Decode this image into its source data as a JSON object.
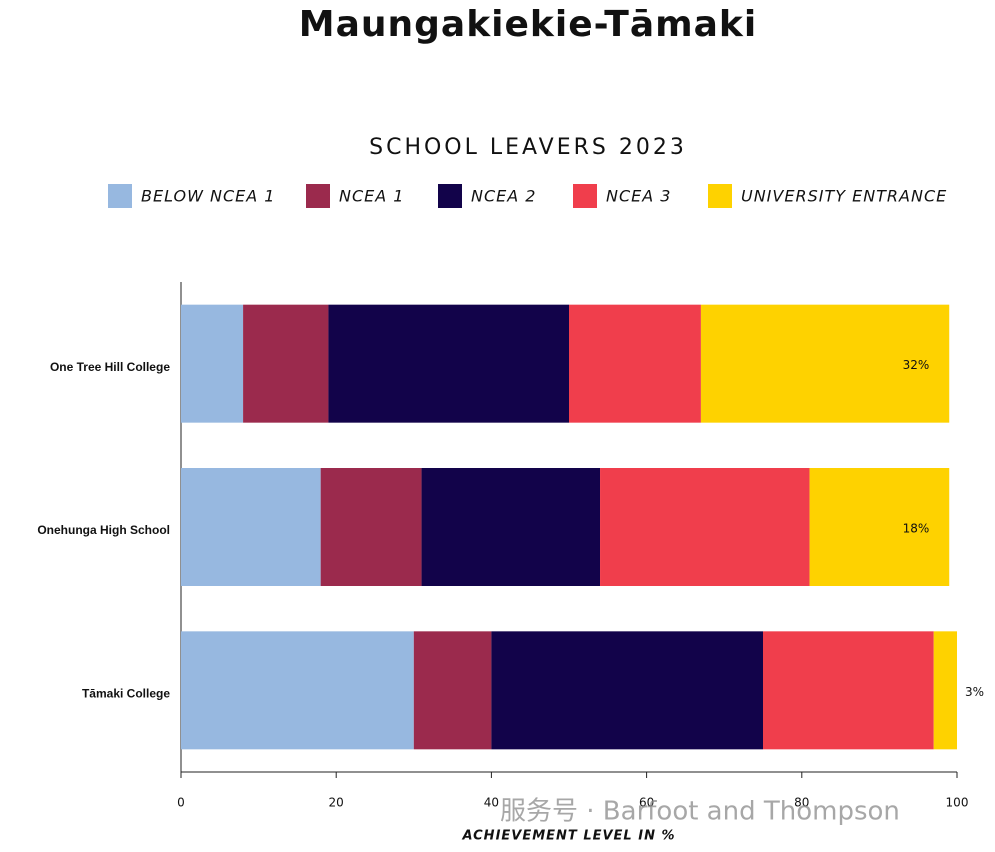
{
  "chart_data": {
    "type": "stacked_barh",
    "title": "Maungakiekie-Tāmaki",
    "subtitle": "SCHOOL LEAVERS 2023",
    "x_label": "ACHIEVEMENT LEVEL IN %",
    "categories": [
      "One Tree Hill College",
      "Onehunga High School",
      "Tāmaki College"
    ],
    "series": [
      {
        "name": "BELOW NCEA 1",
        "color": "#97b8e0",
        "values": [
          8,
          18,
          30
        ]
      },
      {
        "name": "NCEA 1",
        "color": "#9b2a4d",
        "values": [
          11,
          13,
          10
        ]
      },
      {
        "name": "NCEA 2",
        "color": "#12034a",
        "values": [
          31,
          23,
          35
        ]
      },
      {
        "name": "NCEA 3",
        "color": "#f03e4c",
        "values": [
          17,
          27,
          22
        ]
      },
      {
        "name": "UNIVERSITY ENTRANCE",
        "color": "#fed200",
        "values": [
          32,
          18,
          3
        ],
        "value_labels": [
          "32%",
          "18%",
          "3%"
        ]
      }
    ],
    "xlim": [
      0,
      100
    ],
    "xticks": [
      0,
      20,
      40,
      60,
      80,
      100
    ],
    "grid": false,
    "legend": "top",
    "watermark": "服务号 · Barfoot and Thompson"
  }
}
